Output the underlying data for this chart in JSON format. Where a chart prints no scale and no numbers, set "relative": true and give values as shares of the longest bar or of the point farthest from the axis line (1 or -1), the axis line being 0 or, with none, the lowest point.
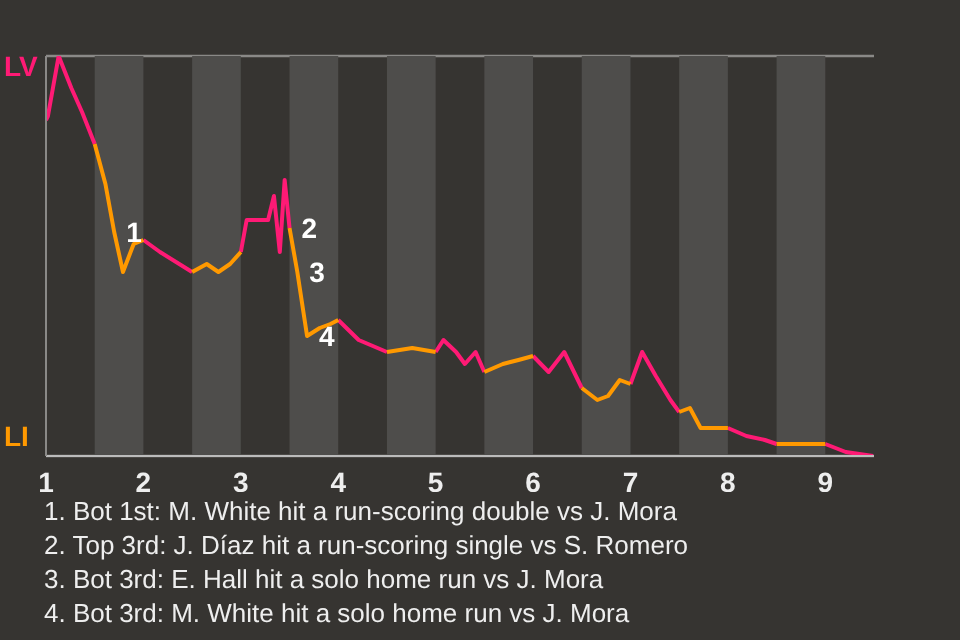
{
  "chart_data": {
    "type": "line",
    "relative": true,
    "x": [
      1,
      1.02,
      1.13,
      1.26,
      1.37,
      1.5,
      1.61,
      1.7,
      1.79,
      1.9,
      2,
      2.17,
      2.5,
      2.65,
      2.77,
      2.89,
      3,
      3.06,
      3.28,
      3.34,
      3.4,
      3.45,
      3.5,
      3.58,
      3.68,
      3.81,
      3.92,
      4,
      4.21,
      4.5,
      4.76,
      5,
      5.08,
      5.21,
      5.3,
      5.41,
      5.5,
      5.69,
      5.85,
      6,
      6.16,
      6.32,
      6.5,
      6.66,
      6.77,
      6.89,
      7,
      7.12,
      7.26,
      7.41,
      7.5,
      7.61,
      7.72,
      8,
      8.19,
      8.38,
      8.5,
      8.76,
      9,
      9.21,
      9.49
    ],
    "series": [
      {
        "name": "LV",
        "color": "#ff1a75",
        "values": [
          0.84,
          0.85,
          1,
          0.92,
          0.86,
          0.78,
          null,
          null,
          null,
          null,
          0.54,
          0.51,
          0.46,
          null,
          null,
          null,
          0.51,
          0.59,
          0.59,
          0.65,
          0.51,
          0.69,
          0.57,
          null,
          null,
          null,
          null,
          0.34,
          0.29,
          0.26,
          null,
          0.26,
          0.29,
          0.26,
          0.23,
          0.26,
          0.21,
          null,
          null,
          0.25,
          0.21,
          0.26,
          0.17,
          null,
          null,
          null,
          0.18,
          0.26,
          0.2,
          0.14,
          0.11,
          null,
          null,
          0.07,
          0.05,
          0.04,
          0.03,
          null,
          0.03,
          0.01,
          0
        ]
      },
      {
        "name": "LI",
        "color": "#ff9900",
        "values": [
          null,
          null,
          null,
          null,
          null,
          0.78,
          0.68,
          0.56,
          0.46,
          0.53,
          0.54,
          null,
          0.46,
          0.48,
          0.46,
          0.48,
          0.51,
          null,
          null,
          null,
          null,
          null,
          0.57,
          0.46,
          0.3,
          0.32,
          0.33,
          0.34,
          null,
          0.26,
          0.27,
          0.26,
          null,
          null,
          null,
          null,
          0.21,
          0.23,
          0.24,
          0.25,
          null,
          null,
          0.17,
          0.14,
          0.15,
          0.19,
          0.18,
          null,
          null,
          null,
          0.11,
          0.12,
          0.07,
          0.07,
          null,
          null,
          0.03,
          0.03,
          0.03,
          null,
          null
        ]
      }
    ],
    "xlim": [
      1,
      9.5
    ],
    "xticks": [
      1,
      2,
      3,
      4,
      5,
      6,
      7,
      8,
      9
    ],
    "tick_labels": "x",
    "grid": "y",
    "marker": "none",
    "line_style": "solid",
    "bands": [
      {
        "axis": "x",
        "from": 1.5,
        "to": 2,
        "color": "#4e4d4b"
      },
      {
        "axis": "x",
        "from": 2.5,
        "to": 3,
        "color": "#4e4d4b"
      },
      {
        "axis": "x",
        "from": 3.5,
        "to": 4,
        "color": "#4e4d4b"
      },
      {
        "axis": "x",
        "from": 4.5,
        "to": 5,
        "color": "#4e4d4b"
      },
      {
        "axis": "x",
        "from": 5.5,
        "to": 6,
        "color": "#4e4d4b"
      },
      {
        "axis": "x",
        "from": 6.5,
        "to": 7,
        "color": "#4e4d4b"
      },
      {
        "axis": "x",
        "from": 7.5,
        "to": 8,
        "color": "#4e4d4b"
      },
      {
        "axis": "x",
        "from": 8.5,
        "to": 9,
        "color": "#4e4d4b"
      }
    ],
    "annotations": [
      {
        "text": "1",
        "x": 1.7,
        "y": 0.56
      },
      {
        "text": "2",
        "x": 3.5,
        "y": 0.57
      },
      {
        "text": "3",
        "x": 3.58,
        "y": 0.46
      },
      {
        "text": "4",
        "x": 3.68,
        "y": 0.3
      },
      "1. Bot 1st: M. White hit a run-scoring double vs J. Mora",
      "2. Top 3rd: J. Díaz hit a run-scoring single vs S. Romero",
      "3. Bot 3rd: E. Hall hit a solo home run vs J. Mora",
      "4. Bot 3rd: M. White hit a solo home run vs J. Mora"
    ]
  }
}
